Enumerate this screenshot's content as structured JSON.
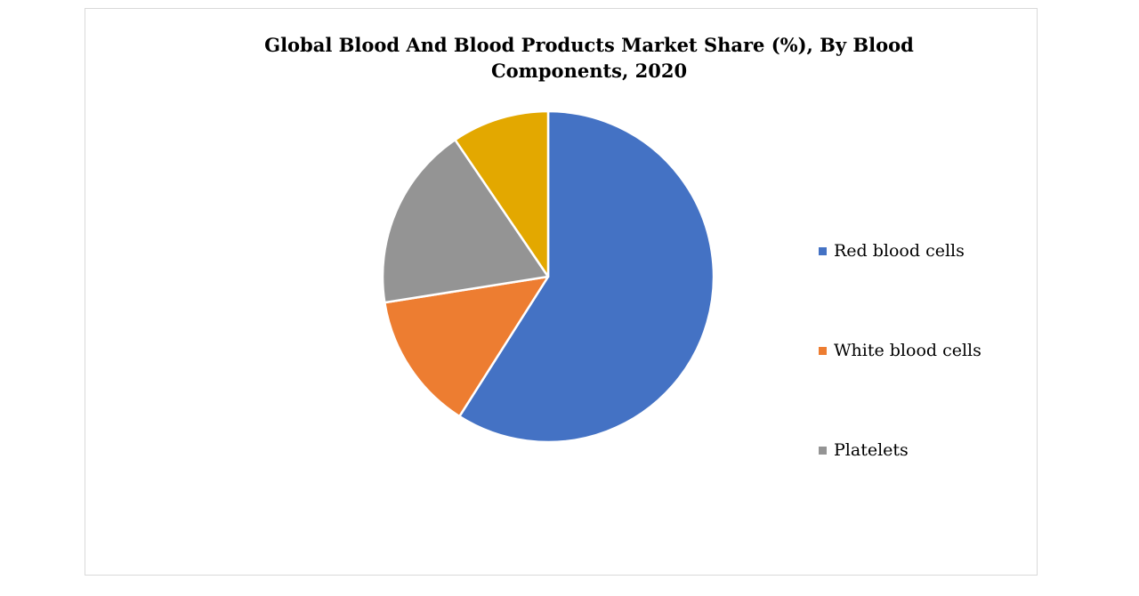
{
  "chart_data": {
    "type": "pie",
    "title_lines": [
      "Global Blood And Blood Products  Market Share (%), By Blood",
      "Components, 2020"
    ],
    "categories": [
      "Red blood cells",
      "White blood cells",
      "Platelets",
      ""
    ],
    "values": [
      59,
      13.5,
      18,
      9.5
    ],
    "colors": [
      "#4472c4",
      "#ed7d31",
      "#949494",
      "#e3a800"
    ],
    "legend": {
      "position": "right",
      "entries": [
        {
          "label": "Red blood cells",
          "color": "#4472c4"
        },
        {
          "label": "White blood cells",
          "color": "#ed7d31"
        },
        {
          "label": "Platelets",
          "color": "#949494"
        }
      ]
    }
  }
}
